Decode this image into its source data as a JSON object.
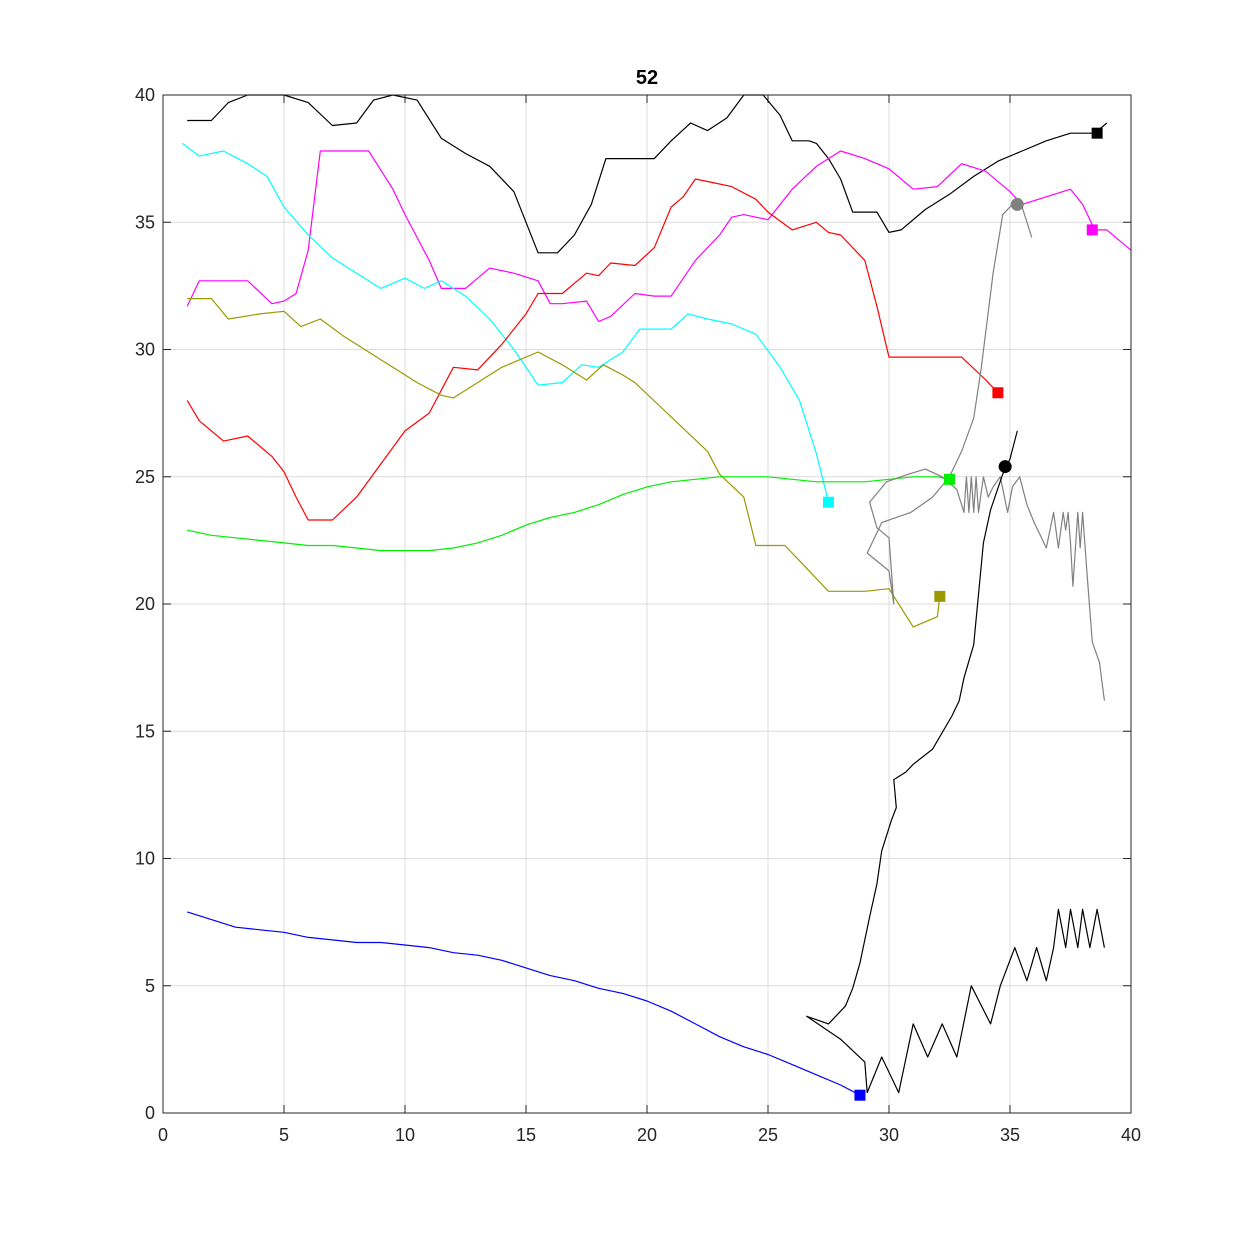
{
  "chart_data": {
    "type": "line",
    "title": "52",
    "xlabel": "",
    "ylabel": "",
    "xlim": [
      0,
      40
    ],
    "ylim": [
      0,
      40
    ],
    "xticks": [
      0,
      5,
      10,
      15,
      20,
      25,
      30,
      35,
      40
    ],
    "yticks": [
      0,
      5,
      10,
      15,
      20,
      25,
      30,
      35,
      40
    ],
    "grid": true,
    "series": [
      {
        "color": "#000000",
        "x": [
          1,
          2,
          2.7,
          3.5,
          5,
          6,
          7,
          8,
          8.7,
          9.5,
          10.5,
          11.5,
          12.5,
          13.5,
          14.5,
          15.5,
          16.3,
          17,
          17.7,
          18.3,
          19.5,
          20.3,
          21,
          21.8,
          22.5,
          23.3,
          24,
          24.8,
          25.5,
          26,
          26.7,
          27,
          27.5,
          28,
          28.5,
          29,
          29.5,
          30,
          30.5,
          31.5,
          32.5,
          33.5,
          34.5,
          35.5,
          36.5,
          37.5,
          38.5,
          39
        ],
        "y": [
          39,
          39,
          39.7,
          40,
          40,
          39.7,
          38.8,
          38.9,
          39.8,
          40,
          39.8,
          38.3,
          37.7,
          37.2,
          36.2,
          33.8,
          33.8,
          34.5,
          35.7,
          37.5,
          37.5,
          37.5,
          38.2,
          38.9,
          38.6,
          39.1,
          40,
          40,
          39.2,
          38.2,
          38.2,
          38.1,
          37.5,
          36.7,
          35.4,
          35.4,
          35.4,
          34.6,
          34.7,
          35.5,
          36.1,
          36.8,
          37.4,
          37.8,
          38.2,
          38.5,
          38.5,
          38.9
        ]
      },
      {
        "color": "#ff00ff",
        "x": [
          1,
          1.5,
          2.5,
          3.5,
          4.5,
          5,
          5.5,
          6,
          6.5,
          7.5,
          8.5,
          9.5,
          10,
          11,
          11.5,
          12.5,
          13.5,
          14.5,
          15.5,
          16,
          16.5,
          17.5,
          18,
          18.5,
          19.5,
          20.3,
          21,
          22,
          23,
          23.5,
          24,
          24.5,
          25,
          26,
          27,
          28,
          29,
          30,
          31,
          32,
          33,
          34,
          35,
          35.5,
          36.5,
          37.5,
          38,
          38.5,
          39,
          40
        ],
        "y": [
          31.7,
          32.7,
          32.7,
          32.7,
          31.8,
          31.9,
          32.2,
          33.9,
          37.8,
          37.8,
          37.8,
          36.3,
          35.3,
          33.5,
          32.4,
          32.4,
          33.2,
          33,
          32.7,
          31.8,
          31.8,
          31.9,
          31.1,
          31.3,
          32.2,
          32.1,
          32.1,
          33.5,
          34.5,
          35.2,
          35.3,
          35.2,
          35.1,
          36.3,
          37.2,
          37.8,
          37.5,
          37.1,
          36.3,
          36.4,
          37.3,
          37,
          36.2,
          35.7,
          36,
          36.3,
          35.7,
          34.7,
          34.7,
          33.9
        ]
      },
      {
        "color": "#00ffff",
        "x": [
          0.8,
          1.5,
          2.5,
          3.5,
          4.3,
          5,
          6,
          7,
          8,
          9,
          10,
          10.8,
          11.5,
          12.5,
          13.5,
          14.5,
          15.5,
          16.5,
          17.3,
          18,
          19,
          19.7,
          20.5,
          21,
          21.7,
          22.5,
          23.5,
          24.5,
          25.5,
          26.3,
          27,
          27.5
        ],
        "y": [
          38.1,
          37.6,
          37.8,
          37.3,
          36.8,
          35.6,
          34.5,
          33.6,
          33,
          32.4,
          32.8,
          32.4,
          32.7,
          32.1,
          31.2,
          30,
          28.6,
          28.7,
          29.4,
          29.3,
          29.9,
          30.8,
          30.8,
          30.8,
          31.4,
          31.2,
          31,
          30.6,
          29.3,
          28,
          25.9,
          24
        ]
      },
      {
        "color": "#ff0000",
        "x": [
          1,
          1.5,
          2.5,
          3.5,
          4.5,
          5,
          5.5,
          6,
          7,
          8,
          9,
          10,
          11,
          12,
          13,
          14,
          15,
          15.5,
          16.5,
          17.5,
          18,
          18.5,
          19.5,
          20.3,
          21,
          21.5,
          22,
          22.5,
          23.5,
          24.5,
          25,
          26,
          27,
          27.5,
          28,
          28.5,
          29,
          29.5,
          30,
          31,
          32,
          33,
          34,
          34.5
        ],
        "y": [
          28,
          27.2,
          26.4,
          26.6,
          25.8,
          25.2,
          24.2,
          23.3,
          23.3,
          24.2,
          25.5,
          26.8,
          27.5,
          29.3,
          29.2,
          30.2,
          31.4,
          32.2,
          32.2,
          33,
          32.9,
          33.4,
          33.3,
          34,
          35.6,
          36,
          36.7,
          36.6,
          36.4,
          35.9,
          35.4,
          34.7,
          35,
          34.6,
          34.5,
          34,
          33.5,
          31.7,
          29.7,
          29.7,
          29.7,
          29.7,
          28.8,
          28.3
        ]
      },
      {
        "color": "#999900",
        "x": [
          1,
          2,
          2.7,
          4,
          5,
          5.7,
          6.5,
          7.5,
          8.5,
          9.5,
          10.5,
          11.5,
          12,
          13,
          14,
          15.5,
          16.5,
          17.5,
          18.2,
          19,
          19.5,
          20.5,
          21.5,
          22.5,
          23,
          24,
          24.5,
          25,
          25.7,
          26.5,
          27.5,
          28.5,
          29,
          30,
          31,
          32,
          32.1
        ],
        "y": [
          32,
          32,
          31.2,
          31.4,
          31.5,
          30.9,
          31.2,
          30.5,
          29.9,
          29.3,
          28.7,
          28.2,
          28.1,
          28.7,
          29.3,
          29.9,
          29.4,
          28.8,
          29.4,
          29,
          28.7,
          27.8,
          26.9,
          26,
          25.1,
          24.2,
          22.3,
          22.3,
          22.3,
          21.5,
          20.5,
          20.5,
          20.5,
          20.6,
          19.1,
          19.5,
          20.3
        ]
      },
      {
        "color": "#00ee00",
        "x": [
          1,
          2,
          3,
          4,
          5,
          6,
          7,
          8,
          9,
          10,
          11,
          12,
          13,
          14,
          15,
          16,
          17,
          18,
          19,
          20,
          21,
          22,
          23,
          24,
          25,
          26,
          27,
          28,
          29,
          30,
          31,
          32,
          32.5
        ],
        "y": [
          22.9,
          22.7,
          22.6,
          22.5,
          22.4,
          22.3,
          22.3,
          22.2,
          22.1,
          22.1,
          22.1,
          22.2,
          22.4,
          22.7,
          23.1,
          23.4,
          23.6,
          23.9,
          24.3,
          24.6,
          24.8,
          24.9,
          25,
          25,
          25,
          24.9,
          24.8,
          24.8,
          24.8,
          24.9,
          25,
          25,
          24.9
        ]
      },
      {
        "color": "#0000ff",
        "x": [
          1,
          2,
          3,
          4,
          5,
          6,
          7,
          8,
          9,
          10,
          11,
          12,
          13,
          14,
          15,
          16,
          17,
          18,
          19,
          20,
          21,
          22,
          23,
          24,
          25,
          26,
          27,
          28,
          28.8
        ],
        "y": [
          7.9,
          7.6,
          7.3,
          7.2,
          7.1,
          6.9,
          6.8,
          6.7,
          6.7,
          6.6,
          6.5,
          6.3,
          6.2,
          6,
          5.7,
          5.4,
          5.2,
          4.9,
          4.7,
          4.4,
          4,
          3.5,
          3,
          2.6,
          2.3,
          1.9,
          1.5,
          1.1,
          0.7
        ]
      },
      {
        "color": "#808080",
        "x": [
          35.9,
          35.5,
          35.2,
          34.7,
          34.3,
          33.8,
          33.5,
          33,
          32.5,
          31.8,
          30.9,
          29.7,
          29.1,
          30,
          30.2,
          30,
          29.5,
          29.2,
          29.9,
          30.8,
          31.5,
          32.2,
          32.8,
          33.1,
          33.2,
          33.3,
          33.4,
          33.5,
          33.6,
          33.7,
          33.9,
          34.1,
          34.3,
          34.6,
          34.9,
          35.1,
          35.4,
          35.7,
          36,
          36.3,
          36.5,
          36.8,
          37,
          37.2,
          37.3,
          37.4,
          37.5,
          37.6,
          37.8,
          37.9,
          38,
          38.2,
          38.4,
          38.7,
          38.9
        ],
        "y": [
          34.4,
          35.6,
          35.8,
          35.3,
          33,
          29.2,
          27.3,
          26,
          25,
          24.2,
          23.6,
          23.2,
          22,
          21.3,
          20,
          22.6,
          23,
          24,
          24.8,
          25.1,
          25.3,
          25,
          24.5,
          23.6,
          25,
          23.6,
          25,
          23.6,
          25,
          23.6,
          25,
          24.2,
          24.6,
          25,
          23.6,
          24.6,
          25,
          23.9,
          23.2,
          22.6,
          22.2,
          23.6,
          22.2,
          23.6,
          22.9,
          23.6,
          22.4,
          20.7,
          23.6,
          22.2,
          23.6,
          21,
          18.5,
          17.7,
          16.2
        ]
      },
      {
        "color": "#000000",
        "x": [
          35.3,
          35,
          34.7,
          34.2,
          33.9,
          33.5,
          33.1,
          32.9,
          32.6,
          31.8,
          31,
          30.7,
          30.2,
          30.3,
          30.1,
          29.7,
          29.5,
          29.2,
          28.8,
          28.5,
          28.2,
          27.5,
          26.6,
          28,
          29,
          29.1,
          29.7,
          30.4,
          31,
          31.6,
          32.2,
          32.8,
          33.4,
          34.2,
          34.6,
          35.2,
          35.7,
          36.1,
          36.5,
          36.8,
          37,
          37.3,
          37.5,
          37.8,
          38,
          38.3,
          38.6,
          38.9
        ],
        "y": [
          26.8,
          25.7,
          25.1,
          23.7,
          22.4,
          18.4,
          17.1,
          16.2,
          15.6,
          14.3,
          13.7,
          13.4,
          13.1,
          12,
          11.5,
          10.3,
          9,
          7.7,
          5.9,
          4.9,
          4.2,
          3.5,
          3.8,
          2.9,
          2,
          0.8,
          2.2,
          0.8,
          3.5,
          2.2,
          3.5,
          2.2,
          5,
          3.5,
          5,
          6.5,
          5.2,
          6.5,
          5.2,
          6.5,
          8,
          6.5,
          8,
          6.5,
          8,
          6.5,
          8,
          6.5
        ]
      }
    ],
    "markers": [
      {
        "shape": "square",
        "color": "#000000",
        "x": 38.6,
        "y": 38.5
      },
      {
        "shape": "square",
        "color": "#ff00ff",
        "x": 38.4,
        "y": 34.7
      },
      {
        "shape": "square",
        "color": "#ff0000",
        "x": 34.5,
        "y": 28.3
      },
      {
        "shape": "square",
        "color": "#00ffff",
        "x": 27.5,
        "y": 24
      },
      {
        "shape": "square",
        "color": "#00ee00",
        "x": 32.5,
        "y": 24.9
      },
      {
        "shape": "square",
        "color": "#999900",
        "x": 32.1,
        "y": 20.3
      },
      {
        "shape": "square",
        "color": "#0000ff",
        "x": 28.8,
        "y": 0.7
      },
      {
        "shape": "circle",
        "color": "#808080",
        "x": 35.3,
        "y": 35.7
      },
      {
        "shape": "circle",
        "color": "#000000",
        "x": 34.8,
        "y": 25.4
      }
    ]
  }
}
